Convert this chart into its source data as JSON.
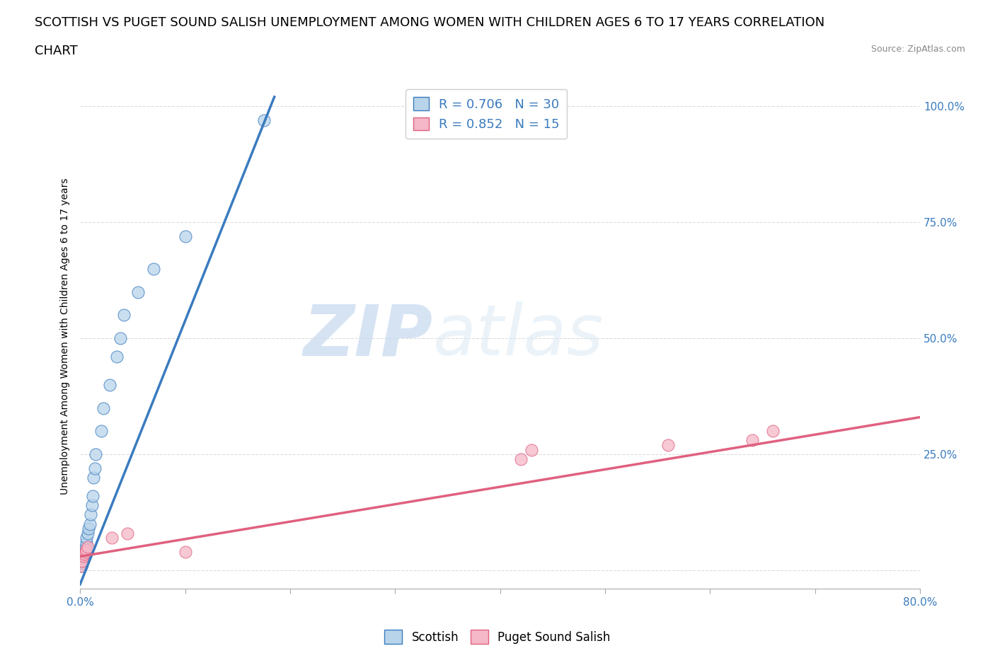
{
  "title_line1": "SCOTTISH VS PUGET SOUND SALISH UNEMPLOYMENT AMONG WOMEN WITH CHILDREN AGES 6 TO 17 YEARS CORRELATION",
  "title_line2": "CHART",
  "source": "Source: ZipAtlas.com",
  "ylabel": "Unemployment Among Women with Children Ages 6 to 17 years",
  "xlim": [
    0.0,
    0.8
  ],
  "ylim": [
    -0.04,
    1.05
  ],
  "xticks": [
    0.0,
    0.1,
    0.2,
    0.3,
    0.4,
    0.5,
    0.6,
    0.7,
    0.8
  ],
  "ytick_positions": [
    0.0,
    0.25,
    0.5,
    0.75,
    1.0
  ],
  "scottish_color": "#b8d4ea",
  "puget_color": "#f5b8c8",
  "scottish_line_color": "#3a7bbf",
  "puget_line_color": "#e06080",
  "scottish_r": 0.706,
  "scottish_n": 30,
  "puget_r": 0.852,
  "puget_n": 15,
  "legend_r_color": "#3a7bbf",
  "background_color": "#ffffff",
  "grid_color": "#dddddd",
  "tick_color": "#3a7bbf",
  "title_fontsize": 13,
  "axis_label_fontsize": 10,
  "tick_fontsize": 11,
  "scottish_x": [
    0.001,
    0.002,
    0.002,
    0.003,
    0.003,
    0.004,
    0.004,
    0.005,
    0.005,
    0.006,
    0.006,
    0.007,
    0.008,
    0.009,
    0.01,
    0.011,
    0.012,
    0.013,
    0.014,
    0.015,
    0.02,
    0.022,
    0.028,
    0.035,
    0.038,
    0.042,
    0.055,
    0.07,
    0.1,
    0.175
  ],
  "scottish_y": [
    0.01,
    0.015,
    0.02,
    0.025,
    0.03,
    0.035,
    0.04,
    0.045,
    0.05,
    0.06,
    0.07,
    0.08,
    0.09,
    0.1,
    0.12,
    0.14,
    0.16,
    0.2,
    0.22,
    0.25,
    0.3,
    0.35,
    0.4,
    0.46,
    0.5,
    0.55,
    0.6,
    0.65,
    0.72,
    0.97
  ],
  "puget_x": [
    0.001,
    0.002,
    0.003,
    0.004,
    0.005,
    0.006,
    0.007,
    0.03,
    0.045,
    0.1,
    0.42,
    0.43,
    0.56,
    0.64,
    0.66
  ],
  "puget_y": [
    0.01,
    0.02,
    0.03,
    0.035,
    0.04,
    0.045,
    0.05,
    0.07,
    0.08,
    0.04,
    0.24,
    0.26,
    0.27,
    0.28,
    0.3
  ],
  "scottish_line_x0": 0.0,
  "scottish_line_y0": -0.03,
  "scottish_line_x1": 0.185,
  "scottish_line_y1": 1.02,
  "puget_line_x0": 0.0,
  "puget_line_y0": 0.03,
  "puget_line_x1": 0.8,
  "puget_line_y1": 0.33
}
